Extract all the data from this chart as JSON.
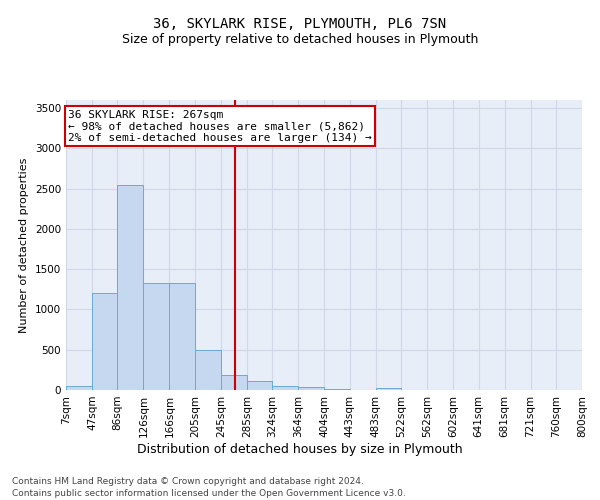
{
  "title": "36, SKYLARK RISE, PLYMOUTH, PL6 7SN",
  "subtitle": "Size of property relative to detached houses in Plymouth",
  "xlabel": "Distribution of detached houses by size in Plymouth",
  "ylabel": "Number of detached properties",
  "bin_edges": [
    7,
    47,
    86,
    126,
    166,
    205,
    245,
    285,
    324,
    364,
    404,
    443,
    483,
    522,
    562,
    602,
    641,
    681,
    721,
    760,
    800
  ],
  "bin_labels": [
    "7sqm",
    "47sqm",
    "86sqm",
    "126sqm",
    "166sqm",
    "205sqm",
    "245sqm",
    "285sqm",
    "324sqm",
    "364sqm",
    "404sqm",
    "443sqm",
    "483sqm",
    "522sqm",
    "562sqm",
    "602sqm",
    "641sqm",
    "681sqm",
    "721sqm",
    "760sqm",
    "800sqm"
  ],
  "counts": [
    50,
    1200,
    2550,
    1330,
    1330,
    500,
    190,
    110,
    50,
    35,
    10,
    5,
    30,
    0,
    0,
    0,
    0,
    0,
    0,
    0
  ],
  "bar_color": "#c5d8f0",
  "bar_edge_color": "#6aaad4",
  "property_size": 267,
  "red_line_color": "#cc0000",
  "annotation_line1": "36 SKYLARK RISE: 267sqm",
  "annotation_line2": "← 98% of detached houses are smaller (5,862)",
  "annotation_line3": "2% of semi-detached houses are larger (134) →",
  "annotation_box_color": "#ffffff",
  "annotation_box_edge_color": "#cc0000",
  "ylim": [
    0,
    3600
  ],
  "yticks": [
    0,
    500,
    1000,
    1500,
    2000,
    2500,
    3000,
    3500
  ],
  "background_color": "#e8eef8",
  "grid_color": "#d0d8e8",
  "footer_line1": "Contains HM Land Registry data © Crown copyright and database right 2024.",
  "footer_line2": "Contains public sector information licensed under the Open Government Licence v3.0.",
  "title_fontsize": 10,
  "subtitle_fontsize": 9,
  "xlabel_fontsize": 9,
  "ylabel_fontsize": 8,
  "tick_fontsize": 7.5,
  "annotation_fontsize": 8,
  "footer_fontsize": 6.5
}
